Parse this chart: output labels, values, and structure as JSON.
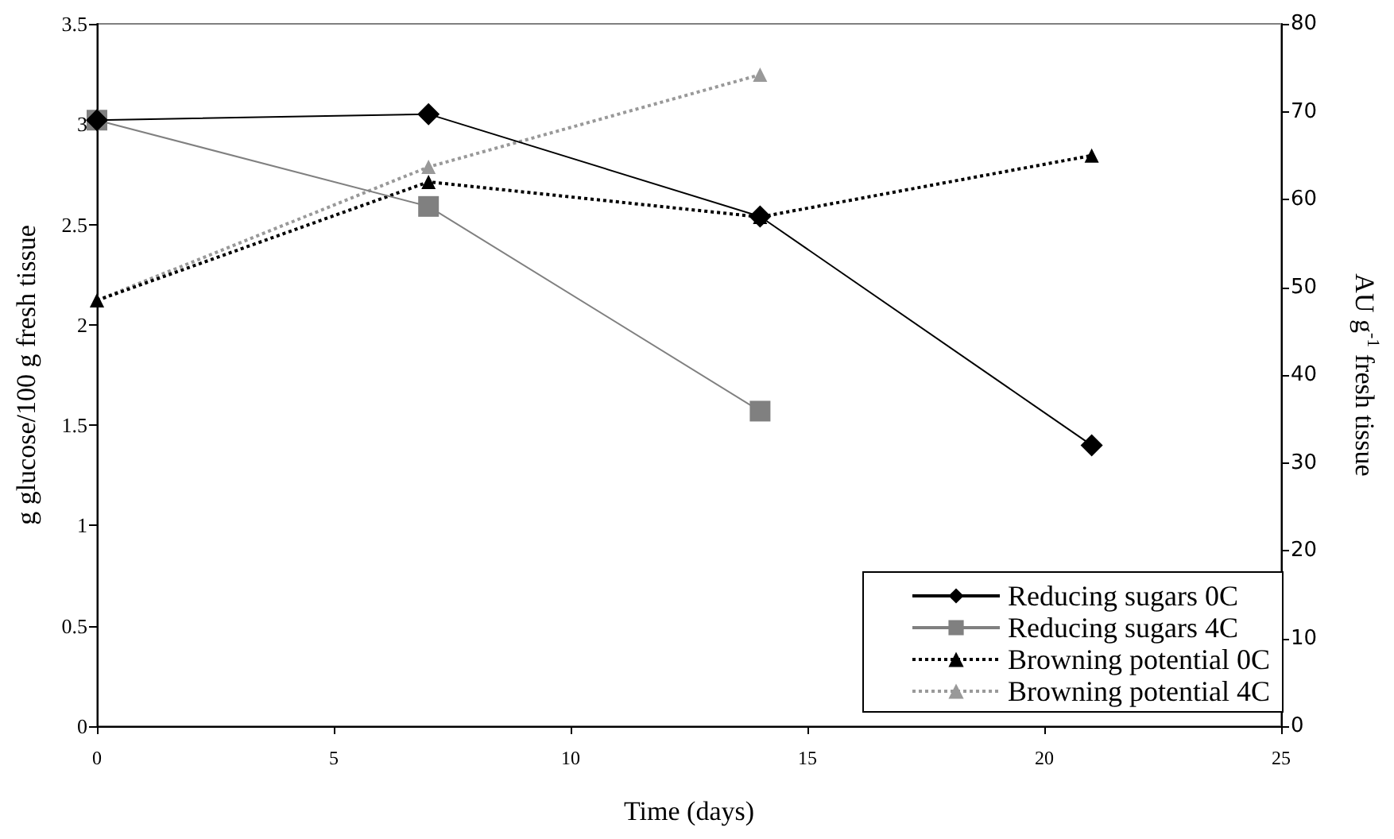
{
  "chart_data": {
    "type": "line",
    "xlabel": "Time (days)",
    "ylabel": "g glucose/100 g fresh tissue",
    "y2label": "AU g$^{-1}$ fresh tissue",
    "xlim": [
      0,
      25
    ],
    "xticks": [
      0,
      5,
      10,
      15,
      20,
      25
    ],
    "ylim": [
      0,
      3.5
    ],
    "yticks": [
      0,
      0.5,
      1,
      1.5,
      2,
      2.5,
      3,
      3.5
    ],
    "y2lim": [
      0,
      80
    ],
    "y2ticks": [
      0,
      10,
      20,
      30,
      40,
      50,
      60,
      70,
      80
    ],
    "grid": false,
    "legend": "bottom right",
    "series": [
      {
        "name": "Reducing sugars 0C",
        "color": "#000000",
        "marker": "diamond",
        "line_style": "solid",
        "x": [
          0,
          7,
          14,
          21
        ],
        "values": [
          3.02,
          3.05,
          2.54,
          1.4
        ]
      },
      {
        "name": "Reducing sugars 4C",
        "color": "#808080",
        "marker": "square",
        "line_style": "solid",
        "x": [
          0,
          7,
          14
        ],
        "values": [
          3.02,
          2.59,
          1.57
        ]
      },
      {
        "name": "Browning potential 0C",
        "color": "#000000",
        "marker": "triangle",
        "line_style": "dotted",
        "axis": "y2",
        "x": [
          0,
          7,
          14,
          21
        ],
        "values": [
          48.5,
          62,
          58,
          65
        ]
      },
      {
        "name": "Browning potential 4C",
        "color": "#999999",
        "marker": "triangle",
        "line_style": "dotted",
        "axis": "y2",
        "x": [
          0,
          7,
          14
        ],
        "values": [
          48.5,
          63.7,
          74.2
        ]
      }
    ]
  }
}
